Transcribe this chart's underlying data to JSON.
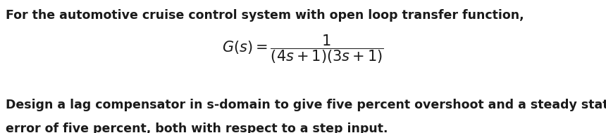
{
  "background_color": "#ffffff",
  "line1": "For the automotive cruise control system with open loop transfer function,",
  "line3": "Design a lag compensator in s-domain to give five percent overshoot and a steady state",
  "line4": "error of five percent, both with respect to a step input.",
  "font_size_text": 12.5,
  "font_size_eq": 15,
  "text_color": "#1a1a1a",
  "fig_width": 8.6,
  "fig_height": 1.9
}
